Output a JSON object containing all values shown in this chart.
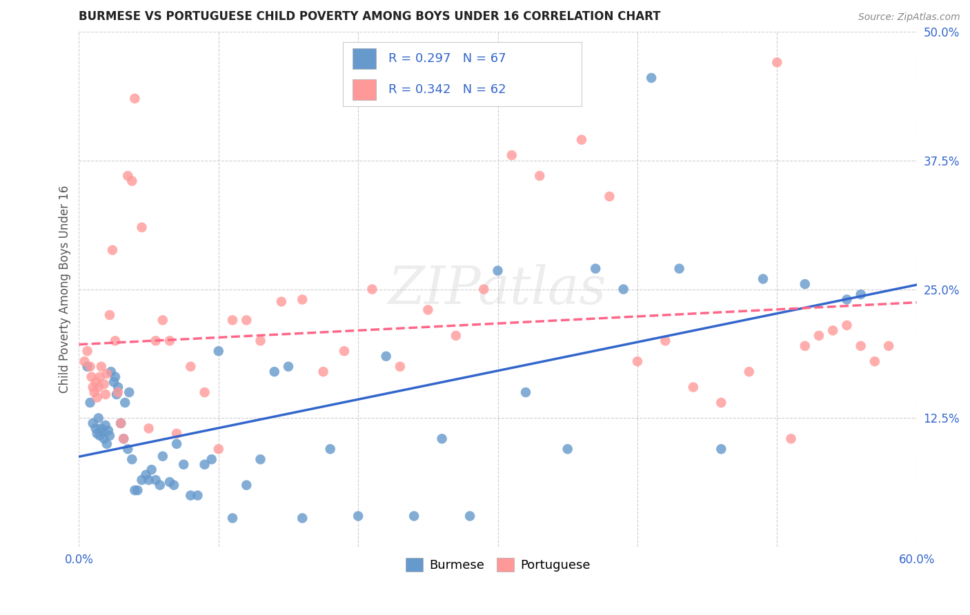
{
  "title": "BURMESE VS PORTUGUESE CHILD POVERTY AMONG BOYS UNDER 16 CORRELATION CHART",
  "source": "Source: ZipAtlas.com",
  "ylabel": "Child Poverty Among Boys Under 16",
  "xlim": [
    0.0,
    0.6
  ],
  "ylim": [
    0.0,
    0.5
  ],
  "xticks": [
    0.0,
    0.1,
    0.2,
    0.3,
    0.4,
    0.5,
    0.6
  ],
  "xticklabels": [
    "0.0%",
    "",
    "",
    "",
    "",
    "",
    "60.0%"
  ],
  "yticks": [
    0.0,
    0.125,
    0.25,
    0.375,
    0.5
  ],
  "yticklabels": [
    "",
    "12.5%",
    "25.0%",
    "37.5%",
    "50.0%"
  ],
  "burmese_R": 0.297,
  "burmese_N": 67,
  "portuguese_R": 0.342,
  "portuguese_N": 62,
  "burmese_color": "#6699CC",
  "portuguese_color": "#FF9999",
  "trend_burmese_color": "#3366CC",
  "trend_portuguese_color": "#FF6688",
  "background_color": "#FFFFFF",
  "grid_color": "#CCCCCC",
  "watermark": "ZIPatlas",
  "burmese_x": [
    0.006,
    0.008,
    0.01,
    0.012,
    0.013,
    0.014,
    0.015,
    0.016,
    0.017,
    0.018,
    0.019,
    0.02,
    0.021,
    0.022,
    0.023,
    0.025,
    0.026,
    0.027,
    0.028,
    0.03,
    0.032,
    0.033,
    0.035,
    0.036,
    0.038,
    0.04,
    0.042,
    0.045,
    0.048,
    0.05,
    0.052,
    0.055,
    0.058,
    0.06,
    0.065,
    0.068,
    0.07,
    0.075,
    0.08,
    0.085,
    0.09,
    0.095,
    0.1,
    0.11,
    0.12,
    0.13,
    0.14,
    0.15,
    0.16,
    0.18,
    0.2,
    0.22,
    0.24,
    0.26,
    0.28,
    0.3,
    0.32,
    0.35,
    0.37,
    0.39,
    0.41,
    0.43,
    0.46,
    0.49,
    0.52,
    0.55,
    0.56
  ],
  "burmese_y": [
    0.175,
    0.14,
    0.12,
    0.115,
    0.11,
    0.125,
    0.108,
    0.115,
    0.112,
    0.105,
    0.118,
    0.1,
    0.113,
    0.108,
    0.17,
    0.16,
    0.165,
    0.148,
    0.155,
    0.12,
    0.105,
    0.14,
    0.095,
    0.15,
    0.085,
    0.055,
    0.055,
    0.065,
    0.07,
    0.065,
    0.075,
    0.065,
    0.06,
    0.088,
    0.063,
    0.06,
    0.1,
    0.08,
    0.05,
    0.05,
    0.08,
    0.085,
    0.19,
    0.028,
    0.06,
    0.085,
    0.17,
    0.175,
    0.028,
    0.095,
    0.03,
    0.185,
    0.03,
    0.105,
    0.03,
    0.268,
    0.15,
    0.095,
    0.27,
    0.25,
    0.455,
    0.27,
    0.095,
    0.26,
    0.255,
    0.24,
    0.245
  ],
  "portuguese_x": [
    0.004,
    0.006,
    0.008,
    0.009,
    0.01,
    0.011,
    0.012,
    0.013,
    0.014,
    0.015,
    0.016,
    0.018,
    0.019,
    0.02,
    0.022,
    0.024,
    0.026,
    0.028,
    0.03,
    0.032,
    0.035,
    0.038,
    0.04,
    0.045,
    0.05,
    0.055,
    0.06,
    0.065,
    0.07,
    0.08,
    0.09,
    0.1,
    0.11,
    0.12,
    0.13,
    0.145,
    0.16,
    0.175,
    0.19,
    0.21,
    0.23,
    0.25,
    0.27,
    0.29,
    0.31,
    0.33,
    0.36,
    0.38,
    0.4,
    0.42,
    0.44,
    0.46,
    0.48,
    0.5,
    0.51,
    0.52,
    0.53,
    0.54,
    0.55,
    0.56,
    0.57,
    0.58
  ],
  "portuguese_y": [
    0.18,
    0.19,
    0.175,
    0.165,
    0.155,
    0.15,
    0.16,
    0.145,
    0.155,
    0.165,
    0.175,
    0.158,
    0.148,
    0.168,
    0.225,
    0.288,
    0.2,
    0.15,
    0.12,
    0.105,
    0.36,
    0.355,
    0.435,
    0.31,
    0.115,
    0.2,
    0.22,
    0.2,
    0.11,
    0.175,
    0.15,
    0.095,
    0.22,
    0.22,
    0.2,
    0.238,
    0.24,
    0.17,
    0.19,
    0.25,
    0.175,
    0.23,
    0.205,
    0.25,
    0.38,
    0.36,
    0.395,
    0.34,
    0.18,
    0.2,
    0.155,
    0.14,
    0.17,
    0.47,
    0.105,
    0.195,
    0.205,
    0.21,
    0.215,
    0.195,
    0.18,
    0.195
  ]
}
